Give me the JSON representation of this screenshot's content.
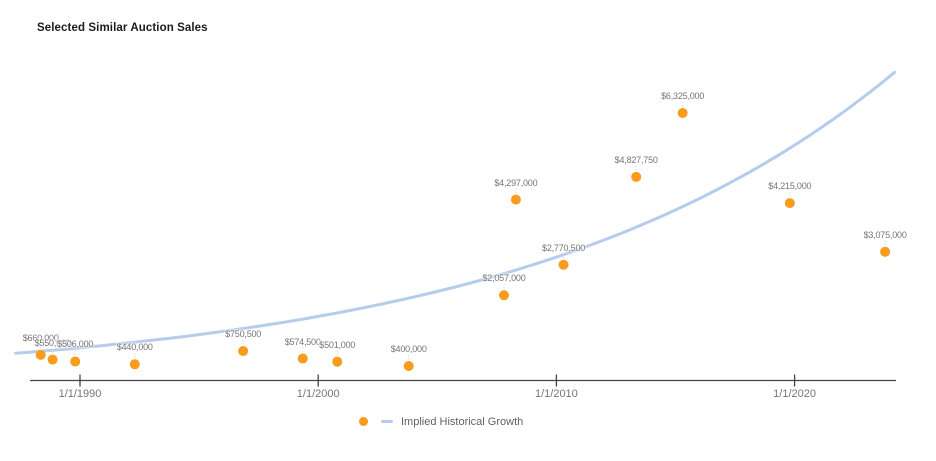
{
  "title": "Selected Similar Auction Sales",
  "legend": {
    "line_label": "Implied Historical Growth"
  },
  "colors": {
    "point_orange": "#F99B1C",
    "trend_blue": "#B6CCEC",
    "annotation_gray": "#757575",
    "axis_gray": "#434343",
    "leader_gray": "#d9d9d9",
    "background": "#FFFFFF"
  },
  "chart_data": {
    "type": "scatter",
    "title": "Selected Similar Auction Sales",
    "grid": false,
    "legend_position": "bottom",
    "x_axis": {
      "ticks": [
        {
          "label": "1/1/1990",
          "year": 1990
        },
        {
          "label": "1/1/2000",
          "year": 2000
        },
        {
          "label": "1/1/2010",
          "year": 2010
        },
        {
          "label": "1/1/2020",
          "year": 2020
        }
      ]
    },
    "y_axis": {
      "visible": false,
      "implied_value_range": [
        400000,
        7300000
      ]
    },
    "points": [
      {
        "label": "$660,000",
        "value": 660000,
        "year": 1988.35
      },
      {
        "label": "$550,000",
        "value": 550000,
        "year": 1988.85
      },
      {
        "label": "$506,000",
        "value": 506000,
        "year": 1989.8
      },
      {
        "label": "$440,000",
        "value": 440000,
        "year": 1992.3
      },
      {
        "label": "$750,500",
        "value": 750500,
        "year": 1996.85
      },
      {
        "label": "$574,500",
        "value": 574500,
        "year": 1999.35
      },
      {
        "label": "$501,000",
        "value": 501000,
        "year": 2000.8
      },
      {
        "label": "$400,000",
        "value": 400000,
        "year": 2003.8
      },
      {
        "label": "$2,057,000",
        "value": 2057000,
        "year": 2007.8
      },
      {
        "label": "$4,297,000",
        "value": 4297000,
        "year": 2008.3
      },
      {
        "label": "$2,770,500",
        "value": 2770500,
        "year": 2010.3
      },
      {
        "label": "$4,827,750",
        "value": 4827750,
        "year": 2013.35
      },
      {
        "label": "$6,325,000",
        "value": 6325000,
        "year": 2015.3
      },
      {
        "label": "$4,215,000",
        "value": 4215000,
        "year": 2019.8
      },
      {
        "label": "$3,075,000",
        "value": 3075000,
        "year": 2023.8
      }
    ],
    "trend_line": {
      "name": "Implied Historical Growth",
      "model": "exponential",
      "base_year": 1988,
      "base_value": 728000,
      "annual_growth_rate": 0.0636,
      "start_year": 1987.3,
      "end_year": 2024.2
    }
  }
}
